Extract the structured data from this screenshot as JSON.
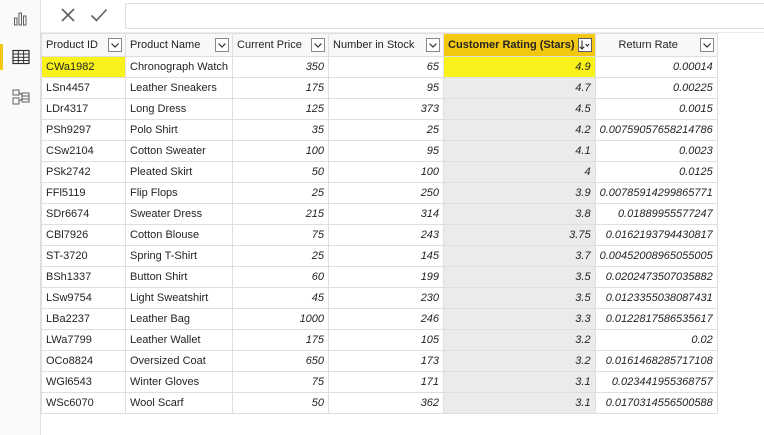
{
  "rail": {
    "items": [
      {
        "name": "report-view-icon"
      },
      {
        "name": "data-view-icon"
      },
      {
        "name": "model-view-icon"
      }
    ]
  },
  "formula_bar": {
    "cancel_icon": "close-icon",
    "commit_icon": "check-icon",
    "value": ""
  },
  "table": {
    "columns": [
      {
        "label": "Product ID"
      },
      {
        "label": "Product Name"
      },
      {
        "label": "Current Price"
      },
      {
        "label": "Number in Stock"
      },
      {
        "label": "Customer Rating (Stars)",
        "sorted": "descending"
      },
      {
        "label": "Return Rate"
      }
    ],
    "rows": [
      [
        "CWa1982",
        "Chronograph Watch",
        "350",
        "65",
        "4.9",
        "0.00014"
      ],
      [
        "LSn4457",
        "Leather Sneakers",
        "175",
        "95",
        "4.7",
        "0.00225"
      ],
      [
        "LDr4317",
        "Long Dress",
        "125",
        "373",
        "4.5",
        "0.0015"
      ],
      [
        "PSh9297",
        "Polo Shirt",
        "35",
        "25",
        "4.2",
        "0.00759057658214786"
      ],
      [
        "CSw2104",
        "Cotton Sweater",
        "100",
        "95",
        "4.1",
        "0.0023"
      ],
      [
        "PSk2742",
        "Pleated Skirt",
        "50",
        "100",
        "4",
        "0.0125"
      ],
      [
        "FFl5119",
        "Flip Flops",
        "25",
        "250",
        "3.9",
        "0.00785914299865771"
      ],
      [
        "SDr6674",
        "Sweater Dress",
        "215",
        "314",
        "3.8",
        "0.01889955577247"
      ],
      [
        "CBl7926",
        "Cotton Blouse",
        "75",
        "243",
        "3.75",
        "0.0162193794430817"
      ],
      [
        "ST-3720",
        "Spring T-Shirt",
        "25",
        "145",
        "3.7",
        "0.00452008965055005"
      ],
      [
        "BSh1337",
        "Button Shirt",
        "60",
        "199",
        "3.5",
        "0.0202473507035882"
      ],
      [
        "LSw9754",
        "Light Sweatshirt",
        "45",
        "230",
        "3.5",
        "0.0123355038087431"
      ],
      [
        "LBa2237",
        "Leather Bag",
        "1000",
        "246",
        "3.3",
        "0.0122817586535617"
      ],
      [
        "LWa7799",
        "Leather Wallet",
        "175",
        "105",
        "3.2",
        "0.02"
      ],
      [
        "OCo8824",
        "Oversized Coat",
        "650",
        "173",
        "3.2",
        "0.0161468285717108"
      ],
      [
        "WGl6543",
        "Winter Gloves",
        "75",
        "171",
        "3.1",
        "0.023441955368757"
      ],
      [
        "WSc6070",
        "Wool Scarf",
        "50",
        "362",
        "3.1",
        "0.0170314556500588"
      ]
    ],
    "selected_row": 0
  },
  "colors": {
    "accent": "#f2c811",
    "highlight": "#f8f21a",
    "sorted_column_bg": "#ebebeb"
  }
}
